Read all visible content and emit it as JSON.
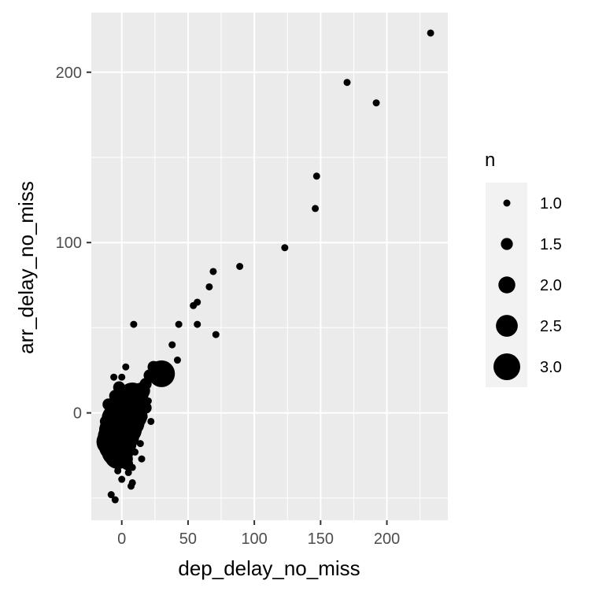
{
  "chart_data": {
    "type": "scatter",
    "title": "",
    "xlabel": "dep_delay_no_miss",
    "ylabel": "arr_delay_no_miss",
    "xlim": [
      -23,
      246
    ],
    "ylim": [
      -63,
      235
    ],
    "x_ticks": [
      0,
      50,
      100,
      150,
      200
    ],
    "y_ticks": [
      0,
      100,
      200
    ],
    "x_tick_labels": [
      "0",
      "50",
      "100",
      "150",
      "200"
    ],
    "y_tick_labels": [
      "0",
      "100",
      "200"
    ],
    "grid": true,
    "background": "#ebebeb",
    "grid_major_color": "#ffffff",
    "point_color": "#000000",
    "size_variable": "n",
    "legend": {
      "title": "n",
      "position": "right",
      "background": "#f2f2f2",
      "entries": [
        {
          "label": "1.0",
          "n": 1.0
        },
        {
          "label": "1.5",
          "n": 1.5
        },
        {
          "label": "2.0",
          "n": 2.0
        },
        {
          "label": "2.5",
          "n": 2.5
        },
        {
          "label": "3.0",
          "n": 3.0
        }
      ]
    },
    "points": [
      {
        "x": 233,
        "y": 223,
        "n": 1
      },
      {
        "x": 170,
        "y": 194,
        "n": 1
      },
      {
        "x": 192,
        "y": 182,
        "n": 1
      },
      {
        "x": 147,
        "y": 139,
        "n": 1
      },
      {
        "x": 146,
        "y": 120,
        "n": 1
      },
      {
        "x": 123,
        "y": 97,
        "n": 1
      },
      {
        "x": 89,
        "y": 86,
        "n": 1
      },
      {
        "x": 69,
        "y": 83,
        "n": 1
      },
      {
        "x": 66,
        "y": 74,
        "n": 1
      },
      {
        "x": 57,
        "y": 65,
        "n": 1
      },
      {
        "x": 54,
        "y": 63,
        "n": 1
      },
      {
        "x": 43,
        "y": 52,
        "n": 1
      },
      {
        "x": 57,
        "y": 52,
        "n": 1
      },
      {
        "x": 71,
        "y": 46,
        "n": 1
      },
      {
        "x": 38,
        "y": 40,
        "n": 1
      },
      {
        "x": 42,
        "y": 31,
        "n": 1
      },
      {
        "x": 9,
        "y": 52,
        "n": 1
      },
      {
        "x": 3,
        "y": 27,
        "n": 1
      },
      {
        "x": 30,
        "y": 23,
        "n": 3
      },
      {
        "x": 24,
        "y": 27,
        "n": 1.5
      },
      {
        "x": 27,
        "y": 24,
        "n": 1.5
      },
      {
        "x": 21,
        "y": 22,
        "n": 1.5
      },
      {
        "x": 18,
        "y": 17,
        "n": 1.5
      },
      {
        "x": 15,
        "y": 13,
        "n": 2
      },
      {
        "x": 12,
        "y": 11,
        "n": 2.5
      },
      {
        "x": 8,
        "y": 10,
        "n": 3
      },
      {
        "x": 5,
        "y": 8,
        "n": 3
      },
      {
        "x": 2,
        "y": 6,
        "n": 3
      },
      {
        "x": -1,
        "y": 3,
        "n": 3
      },
      {
        "x": -3,
        "y": 0,
        "n": 3
      },
      {
        "x": -5,
        "y": -3,
        "n": 3
      },
      {
        "x": -6,
        "y": -7,
        "n": 3
      },
      {
        "x": -7,
        "y": -10,
        "n": 3
      },
      {
        "x": -8,
        "y": -14,
        "n": 3
      },
      {
        "x": -9,
        "y": -17,
        "n": 3
      },
      {
        "x": -7,
        "y": -20,
        "n": 3
      },
      {
        "x": -5,
        "y": -23,
        "n": 3
      },
      {
        "x": -3,
        "y": -25,
        "n": 3
      },
      {
        "x": -1,
        "y": -22,
        "n": 3
      },
      {
        "x": 1,
        "y": -18,
        "n": 3
      },
      {
        "x": 3,
        "y": -14,
        "n": 3
      },
      {
        "x": 5,
        "y": -10,
        "n": 3
      },
      {
        "x": 7,
        "y": -6,
        "n": 3
      },
      {
        "x": 9,
        "y": -2,
        "n": 3
      },
      {
        "x": 11,
        "y": 2,
        "n": 2.5
      },
      {
        "x": 13,
        "y": 6,
        "n": 2
      },
      {
        "x": 6,
        "y": 2,
        "n": 3
      },
      {
        "x": 4,
        "y": -4,
        "n": 3
      },
      {
        "x": 0,
        "y": -8,
        "n": 3
      },
      {
        "x": -4,
        "y": -12,
        "n": 3
      },
      {
        "x": 0,
        "y": -2,
        "n": 3
      },
      {
        "x": 2,
        "y": -27,
        "n": 2
      },
      {
        "x": -2,
        "y": -28,
        "n": 2
      },
      {
        "x": 4,
        "y": -30,
        "n": 1.5
      },
      {
        "x": 15,
        "y": -2,
        "n": 1.5
      },
      {
        "x": 18,
        "y": 3,
        "n": 1.5
      },
      {
        "x": 16,
        "y": 0,
        "n": 1
      },
      {
        "x": 20,
        "y": 7,
        "n": 1
      },
      {
        "x": 22,
        "y": -5,
        "n": 1
      },
      {
        "x": 14,
        "y": -18,
        "n": 1
      },
      {
        "x": 15,
        "y": -27,
        "n": 1
      },
      {
        "x": 10,
        "y": -23,
        "n": 1
      },
      {
        "x": 8,
        "y": -19,
        "n": 1
      },
      {
        "x": -6,
        "y": 21,
        "n": 1
      },
      {
        "x": 0,
        "y": 21,
        "n": 1
      },
      {
        "x": -2,
        "y": 15,
        "n": 1.5
      },
      {
        "x": 3,
        "y": 13,
        "n": 1.5
      },
      {
        "x": -5,
        "y": 10,
        "n": 1.5
      },
      {
        "x": -10,
        "y": 5,
        "n": 1.5
      },
      {
        "x": -12,
        "y": -5,
        "n": 1.5
      },
      {
        "x": -13,
        "y": -12,
        "n": 1.5
      },
      {
        "x": 8,
        "y": -32,
        "n": 1
      },
      {
        "x": 5,
        "y": -35,
        "n": 1
      },
      {
        "x": -3,
        "y": -34,
        "n": 1
      },
      {
        "x": 0,
        "y": -39,
        "n": 1
      },
      {
        "x": 8,
        "y": -41,
        "n": 1
      },
      {
        "x": 7,
        "y": -43,
        "n": 1
      },
      {
        "x": -8,
        "y": -48,
        "n": 1
      },
      {
        "x": -5,
        "y": -51,
        "n": 1
      }
    ]
  }
}
